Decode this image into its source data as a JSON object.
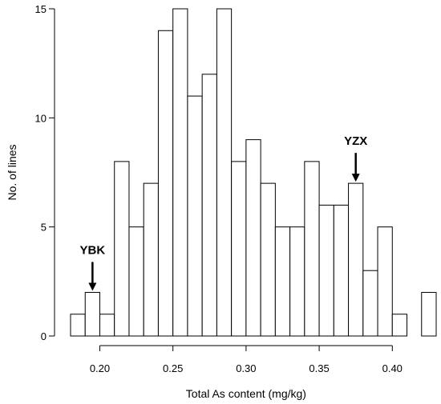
{
  "chart_data": {
    "type": "bar",
    "title": "",
    "xlabel": "Total As content (mg/kg)",
    "ylabel": "No. of lines",
    "bin_width": 0.01,
    "bins": [
      {
        "x0": 0.18,
        "x1": 0.19,
        "count": 1
      },
      {
        "x0": 0.19,
        "x1": 0.2,
        "count": 2
      },
      {
        "x0": 0.2,
        "x1": 0.21,
        "count": 1
      },
      {
        "x0": 0.21,
        "x1": 0.22,
        "count": 8
      },
      {
        "x0": 0.22,
        "x1": 0.23,
        "count": 5
      },
      {
        "x0": 0.23,
        "x1": 0.24,
        "count": 7
      },
      {
        "x0": 0.24,
        "x1": 0.25,
        "count": 14
      },
      {
        "x0": 0.25,
        "x1": 0.26,
        "count": 15
      },
      {
        "x0": 0.26,
        "x1": 0.27,
        "count": 11
      },
      {
        "x0": 0.27,
        "x1": 0.28,
        "count": 12
      },
      {
        "x0": 0.28,
        "x1": 0.29,
        "count": 15
      },
      {
        "x0": 0.29,
        "x1": 0.3,
        "count": 8
      },
      {
        "x0": 0.3,
        "x1": 0.31,
        "count": 9
      },
      {
        "x0": 0.31,
        "x1": 0.32,
        "count": 7
      },
      {
        "x0": 0.32,
        "x1": 0.33,
        "count": 5
      },
      {
        "x0": 0.33,
        "x1": 0.34,
        "count": 5
      },
      {
        "x0": 0.34,
        "x1": 0.35,
        "count": 8
      },
      {
        "x0": 0.35,
        "x1": 0.36,
        "count": 6
      },
      {
        "x0": 0.36,
        "x1": 0.37,
        "count": 6
      },
      {
        "x0": 0.37,
        "x1": 0.38,
        "count": 7
      },
      {
        "x0": 0.38,
        "x1": 0.39,
        "count": 3
      },
      {
        "x0": 0.39,
        "x1": 0.4,
        "count": 5
      },
      {
        "x0": 0.4,
        "x1": 0.41,
        "count": 1
      },
      {
        "x0": 0.41,
        "x1": 0.42,
        "count": 0
      },
      {
        "x0": 0.42,
        "x1": 0.43,
        "count": 2
      }
    ],
    "xticks": [
      0.2,
      0.25,
      0.3,
      0.35,
      0.4
    ],
    "xtick_labels": [
      "0.20",
      "0.25",
      "0.30",
      "0.35",
      "0.40"
    ],
    "yticks": [
      0,
      5,
      10,
      15
    ],
    "ytick_labels": [
      "0",
      "5",
      "10",
      "15"
    ],
    "xlim": [
      0.18,
      0.43
    ],
    "ylim": [
      0,
      15
    ],
    "grid": false,
    "annotations": [
      {
        "label": "YBK",
        "x": 0.195,
        "count": 2
      },
      {
        "label": "YZX",
        "x": 0.375,
        "count": 7
      }
    ]
  }
}
